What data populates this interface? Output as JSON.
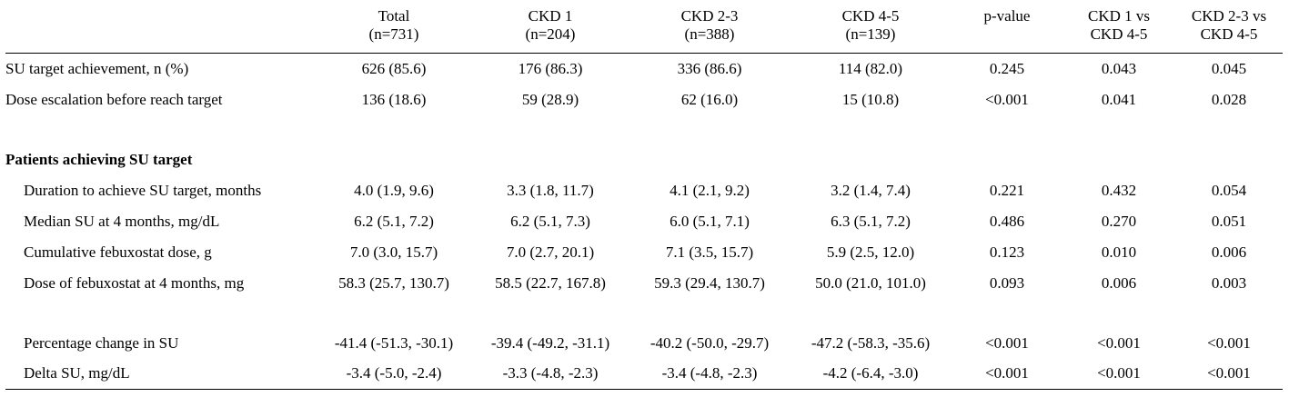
{
  "header": {
    "columns": [
      {
        "l1": "",
        "l2": ""
      },
      {
        "l1": "Total",
        "l2": "(n=731)"
      },
      {
        "l1": "CKD 1",
        "l2": "(n=204)"
      },
      {
        "l1": "CKD 2-3",
        "l2": "(n=388)"
      },
      {
        "l1": "CKD 4-5",
        "l2": "(n=139)"
      },
      {
        "l1": "p-value",
        "l2": ""
      },
      {
        "l1": "CKD 1 vs",
        "l2": "CKD 4-5"
      },
      {
        "l1": "CKD 2-3 vs",
        "l2": "CKD 4-5"
      }
    ]
  },
  "rows": {
    "su_target": {
      "label": "SU target achievement, n (%)",
      "values": [
        "626 (85.6)",
        "176 (86.3)",
        "336 (86.6)",
        "114 (82.0)",
        "0.245",
        "0.043",
        "0.045"
      ]
    },
    "dose_escalation": {
      "label": "Dose escalation before reach target",
      "values": [
        "136 (18.6)",
        "59 (28.9)",
        "62 (16.0)",
        "15 (10.8)",
        "<0.001",
        "0.041",
        "0.028"
      ]
    },
    "section": {
      "label": "Patients achieving SU target"
    },
    "duration": {
      "label": "Duration to achieve SU target, months",
      "values": [
        "4.0 (1.9, 9.6)",
        "3.3 (1.8, 11.7)",
        "4.1 (2.1, 9.2)",
        "3.2 (1.4, 7.4)",
        "0.221",
        "0.432",
        "0.054"
      ]
    },
    "median_su": {
      "label": "Median SU at 4 months, mg/dL",
      "values": [
        "6.2 (5.1, 7.2)",
        "6.2 (5.1, 7.3)",
        "6.0 (5.1, 7.1)",
        "6.3 (5.1, 7.2)",
        "0.486",
        "0.270",
        "0.051"
      ]
    },
    "cumulative": {
      "label": "Cumulative febuxostat dose, g",
      "values": [
        "7.0 (3.0, 15.7)",
        "7.0 (2.7, 20.1)",
        "7.1 (3.5, 15.7)",
        "5.9 (2.5, 12.0)",
        "0.123",
        "0.010",
        "0.006"
      ]
    },
    "dose_4m": {
      "label": "Dose of febuxostat at 4 months, mg",
      "values": [
        "58.3 (25.7, 130.7)",
        "58.5 (22.7, 167.8)",
        "59.3 (29.4, 130.7)",
        "50.0 (21.0, 101.0)",
        "0.093",
        "0.006",
        "0.003"
      ]
    },
    "pct_change": {
      "label": "Percentage change in SU",
      "values": [
        "-41.4 (-51.3, -30.1)",
        "-39.4 (-49.2, -31.1)",
        "-40.2 (-50.0, -29.7)",
        "-47.2 (-58.3, -35.6)",
        "<0.001",
        "<0.001",
        "<0.001"
      ]
    },
    "delta_su": {
      "label": "Delta SU, mg/dL",
      "values": [
        "-3.4 (-5.0, -2.4)",
        "-3.3 (-4.8, -2.3)",
        "-3.4 (-4.8, -2.3)",
        "-4.2 (-6.4, -3.0)",
        "<0.001",
        "<0.001",
        "<0.001"
      ]
    }
  }
}
